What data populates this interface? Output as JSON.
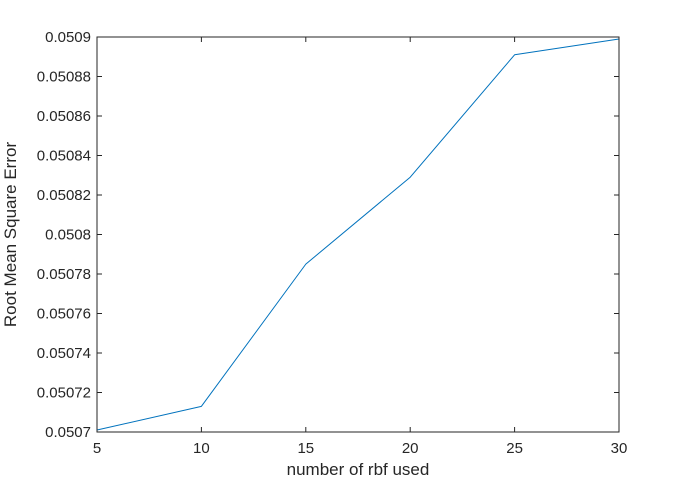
{
  "chart_data": {
    "type": "line",
    "x": [
      5,
      10,
      15,
      20,
      25,
      30
    ],
    "series": [
      {
        "values": [
          0.050701,
          0.050713,
          0.050785,
          0.050829,
          0.050891,
          0.050899
        ],
        "color": "#0072BD"
      }
    ],
    "xlabel": "number of rbf used",
    "ylabel": "Root Mean Square Error",
    "xlim": [
      5,
      30
    ],
    "ylim": [
      0.0507,
      0.0509
    ],
    "xticks": [
      5,
      10,
      15,
      20,
      25,
      30
    ],
    "xtick_labels": [
      "5",
      "10",
      "15",
      "20",
      "25",
      "30"
    ],
    "yticks": [
      0.0507,
      0.05072,
      0.05074,
      0.05076,
      0.05078,
      0.0508,
      0.05082,
      0.05084,
      0.05086,
      0.05088,
      0.0509
    ],
    "ytick_labels": [
      "0.0507",
      "0.05072",
      "0.05074",
      "0.05076",
      "0.05078",
      "0.0508",
      "0.05082",
      "0.05084",
      "0.05086",
      "0.05088",
      "0.0509"
    ],
    "grid": false,
    "box": true
  }
}
